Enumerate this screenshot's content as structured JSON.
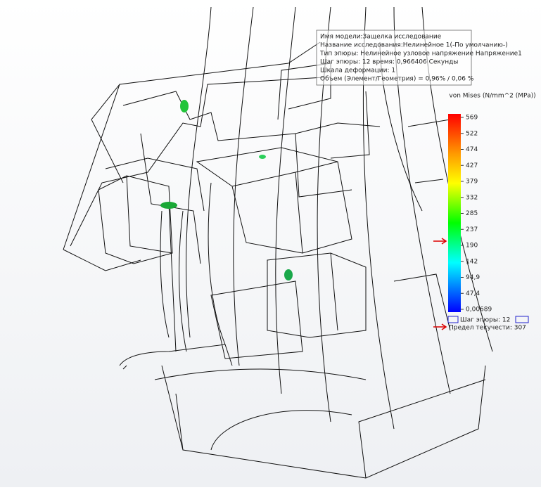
{
  "info": {
    "lines": [
      "Имя модели:Защелка исследование",
      "Название исследования:Нелинейное 1(-По умолчанию-)",
      "Тип эпюры: Нелинейное узловое напряжение Напряжение1",
      "Шаг эпюры: 12 время: 0,966406 Секунды",
      "Шкала деформации: 1",
      "Объем (Элемент/Геометрия) = 0,96% / 0,06 %"
    ]
  },
  "legend": {
    "title": "von Mises (N/mm^2 (MPa))",
    "ticks": [
      "569",
      "522",
      "474",
      "427",
      "379",
      "332",
      "285",
      "237",
      "190",
      "142",
      "94,9",
      "47,4",
      "0,00689"
    ],
    "step": "Шаг эпюры: 12",
    "yield": "Предел текучести: 307"
  }
}
